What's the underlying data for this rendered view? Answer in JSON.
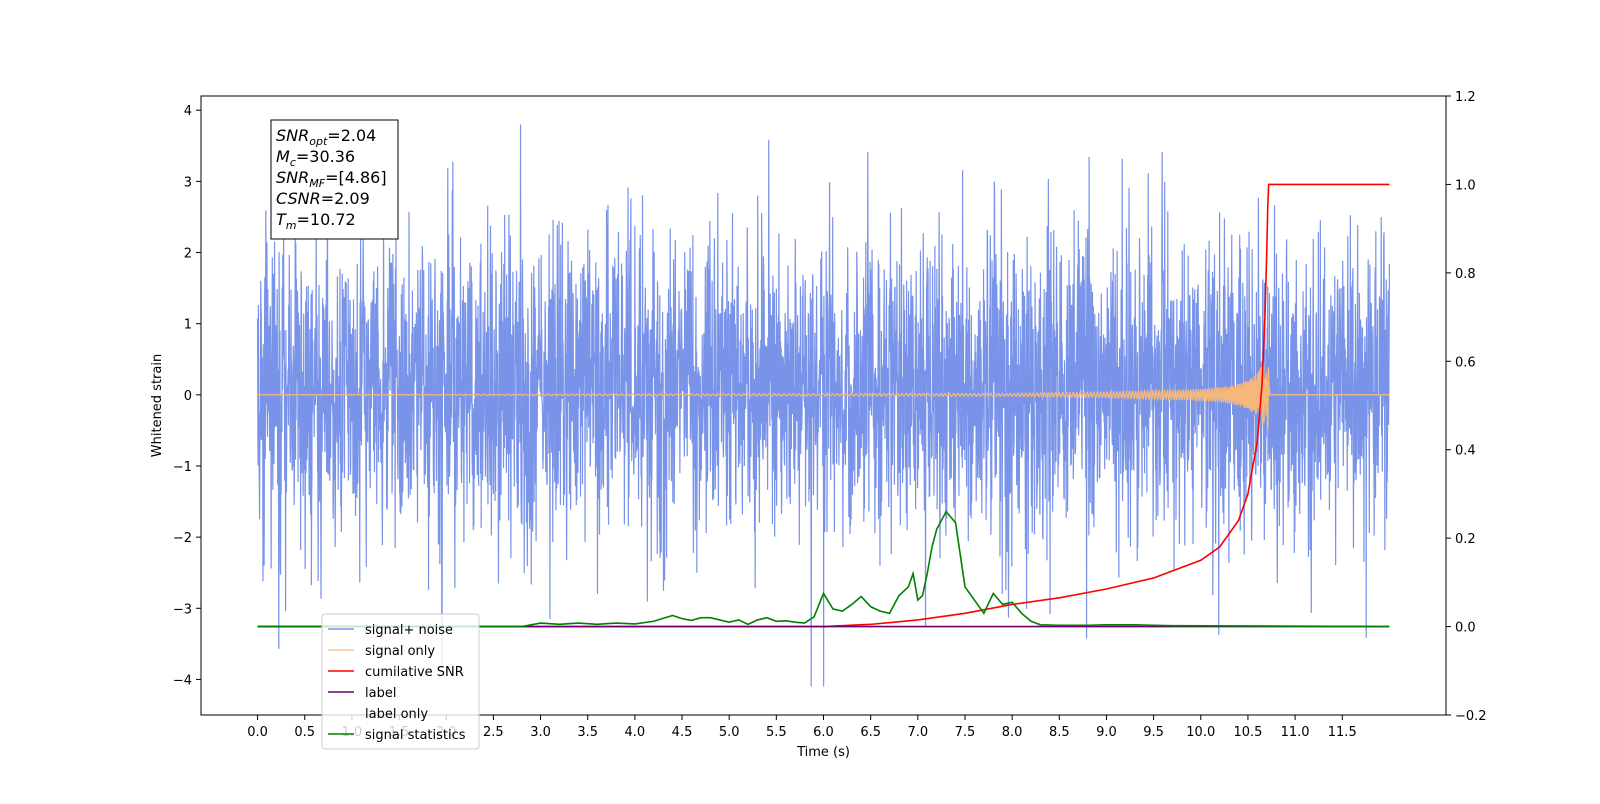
{
  "chart_data": {
    "type": "line",
    "title": "",
    "xlabel": "Time (s)",
    "ylabel": "Whitened strain",
    "y2label": "",
    "xlim": [
      -0.6,
      12.6
    ],
    "ylim": [
      -4.5,
      4.2
    ],
    "y2lim": [
      -0.2,
      1.2
    ],
    "xticks": [
      "0.0",
      "0.5",
      "1.0",
      "1.5",
      "2.0",
      "2.5",
      "3.0",
      "3.5",
      "4.0",
      "4.5",
      "5.0",
      "5.5",
      "6.0",
      "6.5",
      "7.0",
      "7.5",
      "8.0",
      "8.5",
      "9.0",
      "9.5",
      "10.0",
      "10.5",
      "11.0",
      "11.5"
    ],
    "yticks": [
      "4",
      "3",
      "2",
      "1",
      "0",
      "−1",
      "−2",
      "−3",
      "−4"
    ],
    "y2ticks": [
      "1.2",
      "1.0",
      "0.8",
      "0.6",
      "0.4",
      "0.2",
      "0.0",
      "−0.2"
    ],
    "grid": false,
    "legend": {
      "position": "lower-left"
    },
    "stats_box": [
      {
        "base": "SNR",
        "sub": "opt",
        "rest": "=2.04"
      },
      {
        "base": "M",
        "sub": "c",
        "rest": "=30.36"
      },
      {
        "base": "SNR",
        "sub": "MF",
        "rest": "=[4.86]"
      },
      {
        "base": "CSNR",
        "sub": "",
        "rest": "=2.09"
      },
      {
        "base": "T",
        "sub": "m",
        "rest": "=10.72"
      }
    ],
    "series": [
      {
        "name": "signal+ noise",
        "axis": "left",
        "color": "#7893e8",
        "x": [
          0,
          12
        ],
        "amplitude_range": [
          -4.1,
          3.8
        ],
        "typical_range": [
          -2.2,
          2.5
        ]
      },
      {
        "name": "signal only",
        "axis": "left",
        "color": "#f5b87a",
        "x": [
          0,
          8.0,
          9.0,
          9.5,
          10.0,
          10.3,
          10.5,
          10.6,
          10.65,
          10.7,
          10.72,
          10.73,
          12.0
        ],
        "envelope": [
          0.0,
          0.02,
          0.04,
          0.06,
          0.08,
          0.12,
          0.2,
          0.3,
          0.42,
          0.55,
          0.5,
          0.0,
          0.0
        ]
      },
      {
        "name": "cumilative SNR",
        "axis": "right",
        "color": "#ff0000",
        "x": [
          0.0,
          6.0,
          6.5,
          7.0,
          7.5,
          8.0,
          8.5,
          9.0,
          9.5,
          10.0,
          10.2,
          10.4,
          10.5,
          10.6,
          10.65,
          10.68,
          10.7,
          10.71,
          10.72,
          11.0,
          12.0
        ],
        "values": [
          0.0,
          0.0,
          0.005,
          0.015,
          0.03,
          0.05,
          0.065,
          0.085,
          0.11,
          0.15,
          0.18,
          0.24,
          0.3,
          0.42,
          0.55,
          0.7,
          0.85,
          0.95,
          1.0,
          1.0,
          1.0
        ]
      },
      {
        "name": "label",
        "axis": "right",
        "color": "#6b006b",
        "x": [
          0.0,
          12.0
        ],
        "values": [
          0.0,
          0.0
        ]
      },
      {
        "name": "label only",
        "axis": "right",
        "color": "#ffffff",
        "x": [],
        "values": []
      },
      {
        "name": "signal statistics",
        "axis": "right",
        "color": "#008000",
        "x": [
          0.0,
          2.8,
          3.0,
          3.2,
          3.4,
          3.6,
          3.8,
          4.0,
          4.2,
          4.4,
          4.5,
          4.6,
          4.7,
          4.8,
          4.9,
          5.0,
          5.1,
          5.2,
          5.3,
          5.4,
          5.5,
          5.6,
          5.7,
          5.8,
          5.9,
          6.0,
          6.1,
          6.2,
          6.3,
          6.4,
          6.5,
          6.6,
          6.7,
          6.8,
          6.9,
          6.95,
          7.0,
          7.05,
          7.1,
          7.15,
          7.2,
          7.3,
          7.4,
          7.5,
          7.6,
          7.7,
          7.8,
          7.9,
          8.0,
          8.1,
          8.2,
          8.3,
          8.5,
          8.8,
          9.0,
          9.3,
          9.5,
          9.7,
          12.0
        ],
        "values": [
          0.0,
          0.0,
          0.008,
          0.005,
          0.008,
          0.005,
          0.008,
          0.006,
          0.012,
          0.025,
          0.018,
          0.014,
          0.02,
          0.02,
          0.015,
          0.01,
          0.015,
          0.005,
          0.015,
          0.02,
          0.012,
          0.013,
          0.01,
          0.008,
          0.022,
          0.075,
          0.04,
          0.035,
          0.05,
          0.068,
          0.045,
          0.035,
          0.03,
          0.07,
          0.09,
          0.12,
          0.06,
          0.07,
          0.12,
          0.18,
          0.22,
          0.26,
          0.235,
          0.09,
          0.06,
          0.03,
          0.075,
          0.05,
          0.055,
          0.03,
          0.012,
          0.004,
          0.003,
          0.003,
          0.004,
          0.004,
          0.003,
          0.002,
          0.0
        ]
      }
    ]
  }
}
